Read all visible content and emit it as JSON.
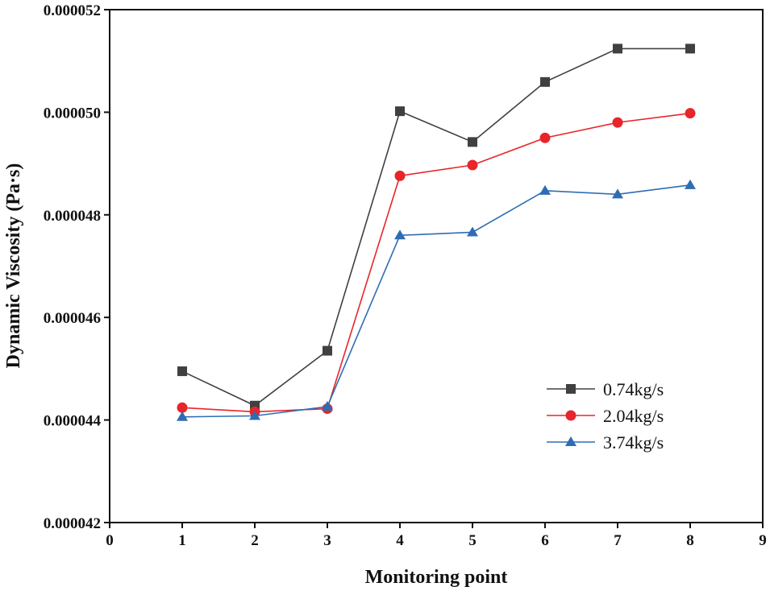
{
  "chart_data": {
    "type": "line",
    "title": "",
    "xlabel": "Monitoring point",
    "ylabel": "Dynamic Viscosity (Pa·s)",
    "xlim": [
      0,
      9
    ],
    "ylim": [
      4.2e-05,
      5.2e-05
    ],
    "x_ticks": [
      0,
      1,
      2,
      3,
      4,
      5,
      6,
      7,
      8,
      9
    ],
    "x_tick_labels": [
      "0",
      "1",
      "2",
      "3",
      "4",
      "5",
      "6",
      "7",
      "8",
      "9"
    ],
    "y_ticks": [
      4.2e-05,
      4.4e-05,
      4.6e-05,
      4.8e-05,
      5e-05,
      5.2e-05
    ],
    "y_tick_labels": [
      "0.000042",
      "0.000044",
      "0.000046",
      "0.000048",
      "0.000050",
      "0.000052"
    ],
    "grid": false,
    "legend_position": "lower-right",
    "x": [
      1,
      2,
      3,
      4,
      5,
      6,
      7,
      8
    ],
    "series": [
      {
        "name": "0.74kg/s",
        "color": "#404040",
        "marker": "square",
        "values": [
          4.495e-05,
          4.428e-05,
          4.535e-05,
          5.002e-05,
          4.942e-05,
          5.059e-05,
          5.124e-05,
          5.124e-05
        ]
      },
      {
        "name": "2.04kg/s",
        "color": "#e8252a",
        "marker": "circle",
        "values": [
          4.424e-05,
          4.416e-05,
          4.422e-05,
          4.876e-05,
          4.897e-05,
          4.95e-05,
          4.98e-05,
          4.998e-05
        ]
      },
      {
        "name": "3.74kg/s",
        "color": "#2e6db4",
        "marker": "triangle",
        "values": [
          4.406e-05,
          4.408e-05,
          4.426e-05,
          4.76e-05,
          4.766e-05,
          4.847e-05,
          4.84e-05,
          4.858e-05
        ]
      }
    ]
  }
}
